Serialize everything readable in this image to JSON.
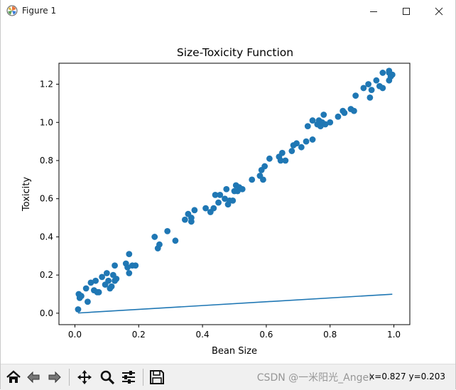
{
  "window": {
    "title": "Figure 1",
    "controls": [
      "minimize",
      "maximize",
      "close"
    ]
  },
  "toolbar": {
    "buttons": [
      "home-icon",
      "back-icon",
      "forward-icon",
      "pan-icon",
      "zoom-icon",
      "configure-subplots-icon",
      "save-icon"
    ],
    "coords": "x=0.827  y=0.203",
    "watermark": "CSDN @一米阳光_Angel"
  },
  "chart_data": {
    "type": "scatter",
    "title": "Size-Toxicity Function",
    "xlabel": "Bean Size",
    "ylabel": "Toxicity",
    "xlim": [
      -0.05,
      1.05
    ],
    "ylim": [
      -0.06,
      1.31
    ],
    "xticks": [
      "0.0",
      "0.2",
      "0.4",
      "0.6",
      "0.8",
      "1.0"
    ],
    "yticks": [
      "0.0",
      "0.2",
      "0.4",
      "0.6",
      "0.8",
      "1.0",
      "1.2"
    ],
    "grid": false,
    "color": "#1f77b4",
    "series": [
      {
        "kind": "scatter",
        "points": [
          [
            0.01,
            0.02
          ],
          [
            0.012,
            0.1
          ],
          [
            0.015,
            0.08
          ],
          [
            0.02,
            0.09
          ],
          [
            0.035,
            0.13
          ],
          [
            0.04,
            0.06
          ],
          [
            0.05,
            0.16
          ],
          [
            0.06,
            0.12
          ],
          [
            0.065,
            0.17
          ],
          [
            0.07,
            0.11
          ],
          [
            0.075,
            0.11
          ],
          [
            0.085,
            0.19
          ],
          [
            0.095,
            0.15
          ],
          [
            0.1,
            0.21
          ],
          [
            0.105,
            0.17
          ],
          [
            0.11,
            0.13
          ],
          [
            0.115,
            0.14
          ],
          [
            0.12,
            0.2
          ],
          [
            0.125,
            0.17
          ],
          [
            0.125,
            0.25
          ],
          [
            0.13,
            0.18
          ],
          [
            0.16,
            0.26
          ],
          [
            0.165,
            0.24
          ],
          [
            0.17,
            0.31
          ],
          [
            0.17,
            0.21
          ],
          [
            0.18,
            0.25
          ],
          [
            0.19,
            0.25
          ],
          [
            0.25,
            0.4
          ],
          [
            0.26,
            0.34
          ],
          [
            0.265,
            0.36
          ],
          [
            0.29,
            0.43
          ],
          [
            0.315,
            0.38
          ],
          [
            0.345,
            0.49
          ],
          [
            0.355,
            0.52
          ],
          [
            0.365,
            0.48
          ],
          [
            0.365,
            0.5
          ],
          [
            0.375,
            0.54
          ],
          [
            0.41,
            0.55
          ],
          [
            0.425,
            0.53
          ],
          [
            0.435,
            0.55
          ],
          [
            0.44,
            0.62
          ],
          [
            0.45,
            0.58
          ],
          [
            0.455,
            0.62
          ],
          [
            0.47,
            0.6
          ],
          [
            0.475,
            0.65
          ],
          [
            0.48,
            0.57
          ],
          [
            0.485,
            0.59
          ],
          [
            0.495,
            0.59
          ],
          [
            0.5,
            0.64
          ],
          [
            0.505,
            0.67
          ],
          [
            0.51,
            0.64
          ],
          [
            0.515,
            0.66
          ],
          [
            0.525,
            0.65
          ],
          [
            0.555,
            0.7
          ],
          [
            0.58,
            0.72
          ],
          [
            0.585,
            0.75
          ],
          [
            0.59,
            0.7
          ],
          [
            0.595,
            0.77
          ],
          [
            0.61,
            0.81
          ],
          [
            0.64,
            0.82
          ],
          [
            0.645,
            0.8
          ],
          [
            0.65,
            0.84
          ],
          [
            0.66,
            0.8
          ],
          [
            0.68,
            0.85
          ],
          [
            0.685,
            0.88
          ],
          [
            0.695,
            0.89
          ],
          [
            0.71,
            0.87
          ],
          [
            0.725,
            0.9
          ],
          [
            0.73,
            0.98
          ],
          [
            0.745,
            1.01
          ],
          [
            0.745,
            0.91
          ],
          [
            0.76,
            0.99
          ],
          [
            0.765,
            1.01
          ],
          [
            0.77,
            0.98
          ],
          [
            0.775,
            1.0
          ],
          [
            0.78,
            1.04
          ],
          [
            0.785,
            0.99
          ],
          [
            0.8,
            1.0
          ],
          [
            0.825,
            1.03
          ],
          [
            0.84,
            1.06
          ],
          [
            0.845,
            1.05
          ],
          [
            0.865,
            1.07
          ],
          [
            0.875,
            1.06
          ],
          [
            0.88,
            1.14
          ],
          [
            0.905,
            1.18
          ],
          [
            0.92,
            1.2
          ],
          [
            0.925,
            1.13
          ],
          [
            0.93,
            1.17
          ],
          [
            0.945,
            1.22
          ],
          [
            0.955,
            1.19
          ],
          [
            0.965,
            1.18
          ],
          [
            0.965,
            1.26
          ],
          [
            0.985,
            1.27
          ],
          [
            0.985,
            1.22
          ],
          [
            0.99,
            1.24
          ],
          [
            0.995,
            1.25
          ],
          [
            0.985,
            1.26
          ]
        ]
      },
      {
        "kind": "line",
        "x": [
          0.01,
          0.995
        ],
        "y": [
          0.001,
          0.0995
        ]
      }
    ]
  }
}
